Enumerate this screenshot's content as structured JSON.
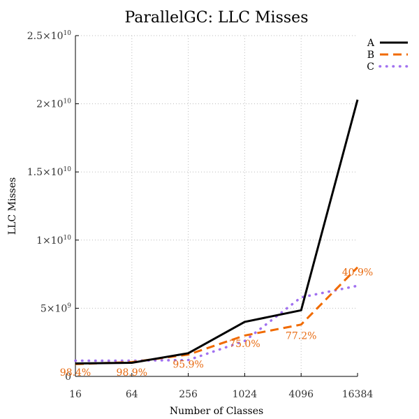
{
  "chart_data": {
    "type": "line",
    "title": "ParallelGC: LLC Misses",
    "xlabel": "Number of Classes",
    "ylabel": "LLC Misses",
    "x": [
      16,
      64,
      256,
      1024,
      4096,
      16384
    ],
    "x_tick_labels": [
      "16",
      "64",
      "256",
      "1024",
      "4096",
      "16384"
    ],
    "x_scale": "log2",
    "ylim": [
      0,
      25000000000
    ],
    "y_ticks": [
      {
        "value": 0,
        "base": "0",
        "exp": ""
      },
      {
        "value": 5000000000,
        "base": "5×10",
        "exp": "9"
      },
      {
        "value": 10000000000,
        "base": "1×10",
        "exp": "10"
      },
      {
        "value": 15000000000,
        "base": "1.5×10",
        "exp": "10"
      },
      {
        "value": 20000000000,
        "base": "2×10",
        "exp": "10"
      },
      {
        "value": 25000000000,
        "base": "2.5×10",
        "exp": "10"
      }
    ],
    "grid": true,
    "legend_position": "top-right",
    "series": [
      {
        "name": "A",
        "color": "#000000",
        "style": "solid",
        "values": [
          950000000,
          1000000000,
          1700000000,
          4000000000,
          4850000000,
          20300000000
        ]
      },
      {
        "name": "B",
        "color": "#f06a00",
        "style": "dashed",
        "values": [
          900000000,
          1050000000,
          1600000000,
          3000000000,
          3800000000,
          8000000000
        ]
      },
      {
        "name": "C",
        "color": "#a070f0",
        "style": "dotted",
        "values": [
          1150000000,
          1150000000,
          1200000000,
          2600000000,
          5800000000,
          6650000000
        ]
      }
    ],
    "annotations": [
      {
        "text": "98.4%",
        "x": 16,
        "y": 50000000
      },
      {
        "text": "98.9%",
        "x": 64,
        "y": 50000000
      },
      {
        "text": "95.9%",
        "x": 256,
        "y": 650000000
      },
      {
        "text": "75.0%",
        "x": 1024,
        "y": 2150000000
      },
      {
        "text": "77.2%",
        "x": 4096,
        "y": 2750000000
      },
      {
        "text": "40.9%",
        "x": 16384,
        "y": 7400000000
      }
    ],
    "annotation_color": "#e86a10"
  }
}
